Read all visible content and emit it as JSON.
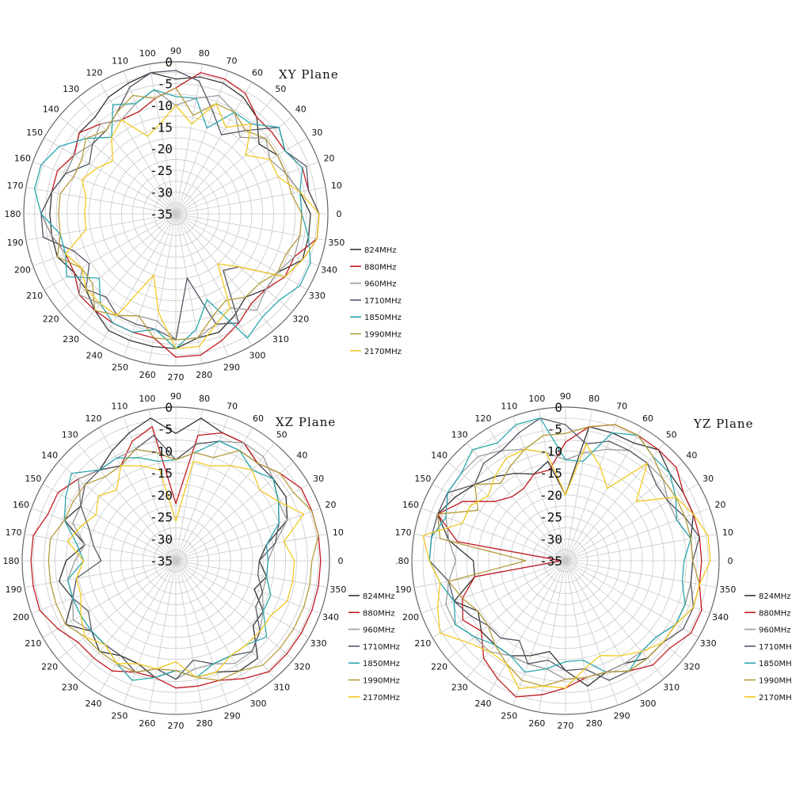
{
  "chart_data": [
    {
      "type": "polar-line",
      "title": "XY Plane",
      "radial_ticks": [
        "0",
        "-5",
        "-10",
        "-15",
        "-20",
        "-25",
        "-30",
        "-35"
      ],
      "rlim": [
        -35,
        0
      ],
      "angle_ticks": [
        "0",
        "10",
        "20",
        "30",
        "40",
        "50",
        "60",
        "70",
        "80",
        "90",
        "100",
        "110",
        "120",
        "130",
        "140",
        "150",
        "160",
        "170",
        "180",
        "190",
        "200",
        "210",
        "220",
        "230",
        "240",
        "250",
        "260",
        "270",
        "280",
        "290",
        "300",
        "310",
        "320",
        "330",
        "340",
        "350"
      ],
      "theta": [
        0,
        10,
        20,
        30,
        40,
        50,
        60,
        70,
        80,
        90,
        100,
        110,
        120,
        130,
        140,
        150,
        160,
        170,
        180,
        190,
        200,
        210,
        220,
        230,
        240,
        250,
        260,
        270,
        280,
        290,
        300,
        310,
        320,
        330,
        340,
        350
      ],
      "legend_position": "right",
      "series": [
        {
          "name": "824MHz",
          "color": "#333333",
          "values": [
            -4,
            -6,
            -8,
            -8,
            -10,
            -6,
            -4,
            -3,
            -3,
            -4,
            -2,
            -3,
            -4,
            -6,
            -6,
            -8,
            -8,
            -6,
            -6,
            -6,
            -6,
            -8,
            -8,
            -6,
            -4,
            -4,
            -4,
            -4,
            -6,
            -6,
            -8,
            -10,
            -8,
            -8,
            -4,
            -4
          ]
        },
        {
          "name": "880MHz",
          "color": "#c0181e",
          "values": [
            -2,
            -4,
            -4,
            -6,
            -6,
            -6,
            -3,
            -2,
            -2,
            -6,
            -8,
            -10,
            -10,
            -8,
            -6,
            -8,
            -6,
            -6,
            -4,
            -6,
            -8,
            -8,
            -6,
            -6,
            -6,
            -6,
            -6,
            -2,
            -2,
            -4,
            -6,
            -8,
            -8,
            -6,
            -6,
            -2
          ]
        },
        {
          "name": "960MHz",
          "color": "#9b9b9b",
          "values": [
            -6,
            -6,
            -8,
            -10,
            -8,
            -12,
            -8,
            -6,
            -8,
            -10,
            -6,
            -8,
            -10,
            -8,
            -10,
            -8,
            -8,
            -6,
            -4,
            -6,
            -8,
            -10,
            -6,
            -8,
            -8,
            -10,
            -10,
            -6,
            -6,
            -8,
            -10,
            -6,
            -8,
            -8,
            -6,
            -6
          ]
        },
        {
          "name": "1710MHz",
          "color": "#555566",
          "values": [
            -2,
            -4,
            -3,
            -6,
            -4,
            -10,
            -14,
            -10,
            -4,
            -2,
            -2,
            -4,
            -8,
            -10,
            -10,
            -12,
            -8,
            -6,
            -4,
            -4,
            -10,
            -12,
            -8,
            -10,
            -8,
            -8,
            -8,
            -6,
            -20,
            -8,
            -6,
            -18,
            -16,
            -6,
            -4,
            -2
          ]
        },
        {
          "name": "1850MHz",
          "color": "#2aa6ad",
          "values": [
            -6,
            -6,
            -4,
            -6,
            -4,
            -8,
            -8,
            -14,
            -8,
            -8,
            -6,
            -8,
            -6,
            -12,
            -8,
            -4,
            -2,
            -2,
            -4,
            -8,
            -8,
            -6,
            -12,
            -8,
            -6,
            -6,
            -8,
            -4,
            -8,
            -14,
            -2,
            -4,
            -4,
            -2,
            -2,
            -4
          ]
        },
        {
          "name": "1990MHz",
          "color": "#b59a3a",
          "values": [
            -6,
            -8,
            -8,
            -8,
            -8,
            -10,
            -8,
            -8,
            -12,
            -6,
            -8,
            -6,
            -8,
            -10,
            -8,
            -10,
            -10,
            -8,
            -8,
            -8,
            -6,
            -10,
            -10,
            -6,
            -8,
            -10,
            -6,
            -6,
            -6,
            -10,
            -12,
            -10,
            -10,
            -8,
            -8,
            -6
          ]
        },
        {
          "name": "2170MHz",
          "color": "#f2c81f",
          "values": [
            -2,
            -6,
            -10,
            -10,
            -14,
            -8,
            -12,
            -8,
            -14,
            -10,
            -14,
            -16,
            -10,
            -12,
            -16,
            -14,
            -12,
            -14,
            -14,
            -14,
            -8,
            -10,
            -8,
            -8,
            -8,
            -20,
            -12,
            -4,
            -4,
            -8,
            -10,
            -20,
            -16,
            -6,
            -4,
            -2
          ]
        }
      ]
    },
    {
      "type": "polar-line",
      "title": "XZ Plane",
      "radial_ticks": [
        "0",
        "-5",
        "-10",
        "-15",
        "-20",
        "-25",
        "-30",
        "-35"
      ],
      "rlim": [
        -35,
        0
      ],
      "angle_ticks": [
        "0",
        "10",
        "20",
        "30",
        "40",
        "50",
        "60",
        "70",
        "80",
        "90",
        "100",
        "110",
        "120",
        "130",
        "140",
        "150",
        "160",
        "170",
        "180",
        "190",
        "200",
        "210",
        "220",
        "230",
        "240",
        "250",
        "260",
        "270",
        "280",
        "290",
        "300",
        "310",
        "320",
        "330",
        "340",
        "350"
      ],
      "theta": [
        0,
        10,
        20,
        30,
        40,
        50,
        60,
        70,
        80,
        90,
        100,
        110,
        120,
        130,
        140,
        150,
        160,
        170,
        180,
        190,
        200,
        210,
        220,
        230,
        240,
        250,
        260,
        270,
        280,
        290,
        300,
        310,
        320,
        330,
        340,
        350
      ],
      "legend_position": "right",
      "series": [
        {
          "name": "824MHz",
          "color": "#333333",
          "values": [
            -16,
            -14,
            -8,
            -6,
            -6,
            -6,
            -4,
            -4,
            -2,
            -6,
            -2,
            -4,
            -6,
            -8,
            -6,
            -10,
            -8,
            -14,
            -10,
            -8,
            -10,
            -6,
            -10,
            -8,
            -10,
            -10,
            -8,
            -10,
            -8,
            -8,
            -6,
            -6,
            -12,
            -12,
            -16,
            -14
          ]
        },
        {
          "name": "880MHz",
          "color": "#c0181e",
          "values": [
            -2,
            -2,
            -2,
            -2,
            -4,
            -6,
            -4,
            -4,
            -6,
            -22,
            -4,
            -6,
            -10,
            -8,
            -6,
            -4,
            -4,
            -2,
            -2,
            -2,
            -2,
            -4,
            -6,
            -6,
            -6,
            -8,
            -8,
            -6,
            -6,
            -6,
            -4,
            -2,
            -2,
            -2,
            -2,
            -2
          ]
        },
        {
          "name": "960MHz",
          "color": "#9b9b9b",
          "values": [
            -14,
            -12,
            -8,
            -8,
            -6,
            -4,
            -4,
            -6,
            -8,
            -12,
            -10,
            -8,
            -8,
            -8,
            -6,
            -10,
            -10,
            -14,
            -12,
            -10,
            -10,
            -8,
            -10,
            -10,
            -10,
            -8,
            -10,
            -8,
            -10,
            -10,
            -8,
            -8,
            -10,
            -12,
            -14,
            -14
          ]
        },
        {
          "name": "1710MHz",
          "color": "#555566",
          "values": [
            -16,
            -12,
            -10,
            -8,
            -6,
            -6,
            -6,
            -6,
            -8,
            -12,
            -6,
            -8,
            -10,
            -8,
            -8,
            -10,
            -14,
            -16,
            -18,
            -12,
            -10,
            -12,
            -10,
            -10,
            -10,
            -8,
            -10,
            -8,
            -12,
            -10,
            -10,
            -8,
            -10,
            -14,
            -14,
            -16
          ]
        },
        {
          "name": "1850MHz",
          "color": "#2aa6ad",
          "values": [
            -14,
            -14,
            -10,
            -8,
            -6,
            -8,
            -6,
            -6,
            -10,
            -12,
            -12,
            -10,
            -8,
            -8,
            -4,
            -6,
            -8,
            -12,
            -14,
            -10,
            -10,
            -10,
            -10,
            -10,
            -8,
            -6,
            -8,
            -10,
            -8,
            -10,
            -10,
            -10,
            -8,
            -12,
            -12,
            -14
          ]
        },
        {
          "name": "1990MHz",
          "color": "#b59a3a",
          "values": [
            -4,
            -2,
            -2,
            -4,
            -4,
            -6,
            -6,
            -10,
            -10,
            -12,
            -10,
            -8,
            -10,
            -10,
            -8,
            -8,
            -8,
            -6,
            -6,
            -6,
            -6,
            -6,
            -8,
            -8,
            -8,
            -8,
            -10,
            -10,
            -8,
            -6,
            -6,
            -4,
            -4,
            -4,
            -4,
            -4
          ]
        },
        {
          "name": "2170MHz",
          "color": "#f2c81f",
          "values": [
            -8,
            -10,
            -4,
            -8,
            -10,
            -8,
            -10,
            -12,
            -12,
            -26,
            -14,
            -12,
            -10,
            -14,
            -12,
            -14,
            -12,
            -10,
            -14,
            -12,
            -12,
            -10,
            -8,
            -10,
            -8,
            -10,
            -10,
            -12,
            -8,
            -8,
            -10,
            -10,
            -10,
            -10,
            -8,
            -8
          ]
        }
      ]
    },
    {
      "type": "polar-line",
      "title": "YZ Plane",
      "radial_ticks": [
        "0",
        "-5",
        "-10",
        "-15",
        "-20",
        "-25",
        "-30",
        "-35"
      ],
      "rlim": [
        -35,
        0
      ],
      "angle_ticks": [
        "0",
        "10",
        "20",
        "30",
        "40",
        "50",
        "60",
        "70",
        "80",
        "90",
        "100",
        "110",
        "120",
        "130",
        "140",
        "150",
        "160",
        "170",
        "180",
        "190",
        "200",
        "210",
        "220",
        "230",
        "240",
        "250",
        "260",
        "270",
        "280",
        "290",
        "300",
        "310",
        "320",
        "330",
        "340",
        "350"
      ],
      "theta": [
        0,
        10,
        20,
        30,
        40,
        50,
        60,
        70,
        80,
        90,
        100,
        110,
        120,
        130,
        140,
        150,
        160,
        170,
        180,
        190,
        200,
        210,
        220,
        230,
        240,
        250,
        260,
        270,
        280,
        290,
        300,
        310,
        320,
        330,
        340,
        350
      ],
      "legend_position": "right",
      "series": [
        {
          "name": "824MHz",
          "color": "#333333",
          "values": [
            -6,
            -6,
            -4,
            -4,
            -4,
            -2,
            -4,
            -4,
            -4,
            -20,
            -12,
            -14,
            -12,
            -10,
            -8,
            -6,
            -4,
            -8,
            -14,
            -14,
            -8,
            -12,
            -10,
            -10,
            -10,
            -12,
            -14,
            -10,
            -6,
            -8,
            -8,
            -6,
            -6,
            -6,
            -6,
            -6
          ]
        },
        {
          "name": "880MHz",
          "color": "#c0181e",
          "values": [
            -4,
            -4,
            -4,
            -4,
            -2,
            -2,
            -2,
            -2,
            -4,
            -8,
            -14,
            -14,
            -16,
            -16,
            -14,
            -8,
            -4,
            -10,
            -34,
            -14,
            -10,
            -8,
            -10,
            -6,
            -4,
            -2,
            -4,
            -6,
            -8,
            -8,
            -6,
            -4,
            -4,
            -2,
            -2,
            -4
          ]
        },
        {
          "name": "960MHz",
          "color": "#9b9b9b",
          "values": [
            -6,
            -6,
            -8,
            -8,
            -6,
            -6,
            -6,
            -8,
            -10,
            -12,
            -10,
            -8,
            -6,
            -4,
            -4,
            -4,
            -6,
            -8,
            -10,
            -8,
            -6,
            -6,
            -8,
            -8,
            -10,
            -10,
            -10,
            -8,
            -8,
            -8,
            -8,
            -8,
            -8,
            -6,
            -6,
            -6
          ]
        },
        {
          "name": "1710MHz",
          "color": "#555566",
          "values": [
            -6,
            -4,
            -6,
            -8,
            -8,
            -6,
            -6,
            -6,
            -8,
            -4,
            -2,
            -4,
            -6,
            -6,
            -8,
            -4,
            -4,
            -4,
            -4,
            -8,
            -8,
            -10,
            -12,
            -12,
            -14,
            -10,
            -12,
            -10,
            -10,
            -6,
            -6,
            -6,
            -6,
            -4,
            -4,
            -6
          ]
        },
        {
          "name": "1850MHz",
          "color": "#2aa6ad",
          "values": [
            -8,
            -6,
            -8,
            -6,
            -4,
            -4,
            -2,
            -4,
            -12,
            -12,
            -2,
            -2,
            -4,
            -2,
            -4,
            -4,
            -6,
            -4,
            -4,
            -6,
            -8,
            -6,
            -8,
            -10,
            -10,
            -8,
            -10,
            -12,
            -12,
            -8,
            -6,
            -8,
            -8,
            -6,
            -6,
            -8
          ]
        },
        {
          "name": "1990MHz",
          "color": "#b59a3a",
          "values": [
            -6,
            -6,
            -6,
            -6,
            -6,
            -4,
            -2,
            -2,
            -4,
            -6,
            -6,
            -8,
            -10,
            -12,
            -8,
            -12,
            -4,
            -6,
            -26,
            -8,
            -10,
            -12,
            -12,
            -10,
            -8,
            -6,
            -6,
            -8,
            -8,
            -8,
            -6,
            -6,
            -6,
            -6,
            -4,
            -4
          ]
        },
        {
          "name": "2170MHz",
          "color": "#f2c81f",
          "values": [
            -2,
            -2,
            -4,
            -6,
            -14,
            -6,
            -16,
            -12,
            -8,
            -20,
            -10,
            -8,
            -8,
            -10,
            -12,
            -10,
            -10,
            -2,
            -4,
            -6,
            -4,
            -2,
            -6,
            -8,
            -8,
            -4,
            -6,
            -6,
            -10,
            -12,
            -10,
            -8,
            -6,
            -6,
            -4,
            -4
          ]
        }
      ]
    }
  ]
}
